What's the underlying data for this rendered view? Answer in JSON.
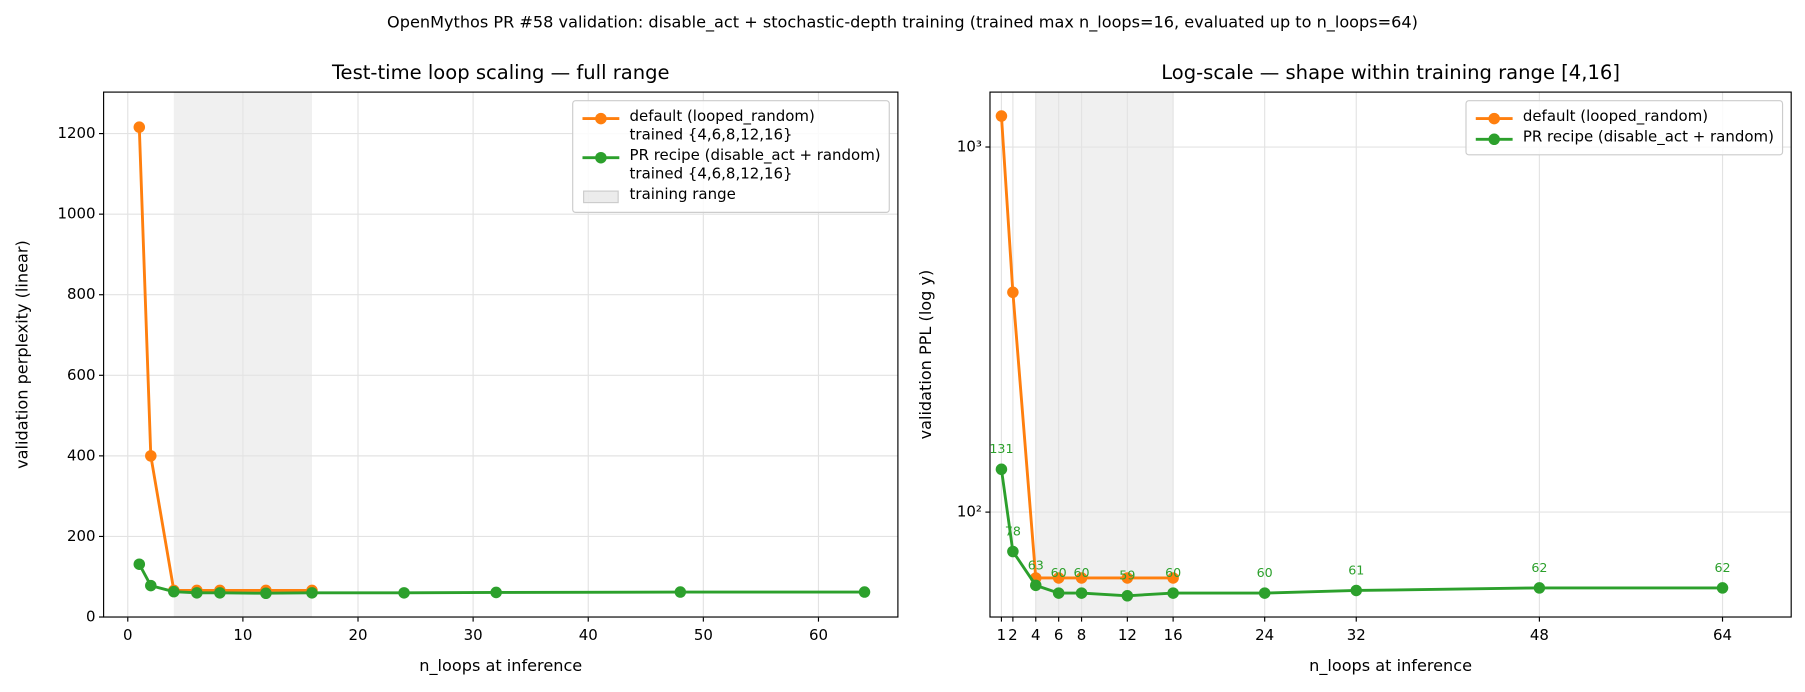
{
  "title": "OpenMythos PR #58 validation: disable_act + stochastic-depth training (trained max n_loops=16, evaluated up to n_loops=64)",
  "chart_data": [
    {
      "type": "line",
      "title": "Test-time loop scaling — full range",
      "xlabel": "n_loops at inference",
      "ylabel": "validation perplexity (linear)",
      "xlim": [
        -2.1,
        66.9
      ],
      "ylim": [
        0,
        1303
      ],
      "yscale": "linear",
      "xticks": [
        0,
        10,
        20,
        30,
        40,
        50,
        60
      ],
      "yticks": [
        0,
        200,
        400,
        600,
        800,
        1000,
        1200
      ],
      "grid": true,
      "legend": "upper right",
      "shade": [
        4,
        16
      ],
      "shade_label": "training range",
      "shade_color": "#d9d9d9",
      "series": [
        {
          "name": "default (looped_random)\ntrained {4,6,8,12,16}",
          "color": "#ff7f0e",
          "x": [
            1,
            2,
            4,
            6,
            8,
            12,
            16
          ],
          "values": [
            1216,
            400,
            66,
            66,
            66,
            66,
            66
          ]
        },
        {
          "name": "PR recipe (disable_act + random)\ntrained {4,6,8,12,16}",
          "color": "#2ca02c",
          "x": [
            1,
            2,
            4,
            6,
            8,
            12,
            16,
            24,
            32,
            48,
            64
          ],
          "values": [
            131,
            78,
            63,
            60,
            60,
            59,
            60,
            60,
            61,
            62,
            62
          ]
        }
      ]
    },
    {
      "type": "line",
      "title": "Log-scale — shape within training range [4,16]",
      "xlabel": "n_loops at inference",
      "ylabel": "validation PPL (log y)",
      "xlim": [
        0,
        70
      ],
      "ylim": [
        51.6,
        1414
      ],
      "yscale": "log",
      "xticks": [
        1,
        2,
        4,
        6,
        8,
        12,
        16,
        24,
        32,
        48,
        64
      ],
      "yticks": [
        {
          "value": 100,
          "label": "10²"
        },
        {
          "value": 1000,
          "label": "10³"
        }
      ],
      "grid": true,
      "legend": "upper right",
      "shade": [
        4,
        16
      ],
      "shade_color": "#d9d9d9",
      "series": [
        {
          "name": "default (looped_random)",
          "color": "#ff7f0e",
          "x": [
            1,
            2,
            4,
            6,
            8,
            12,
            16
          ],
          "values": [
            1216,
            400,
            66,
            66,
            66,
            66,
            66
          ]
        },
        {
          "name": "PR recipe (disable_act + random)",
          "color": "#2ca02c",
          "show_value_labels": true,
          "x": [
            1,
            2,
            4,
            6,
            8,
            12,
            16,
            24,
            32,
            48,
            64
          ],
          "values": [
            131,
            78,
            63,
            60,
            60,
            59,
            60,
            60,
            61,
            62,
            62
          ]
        }
      ]
    }
  ]
}
